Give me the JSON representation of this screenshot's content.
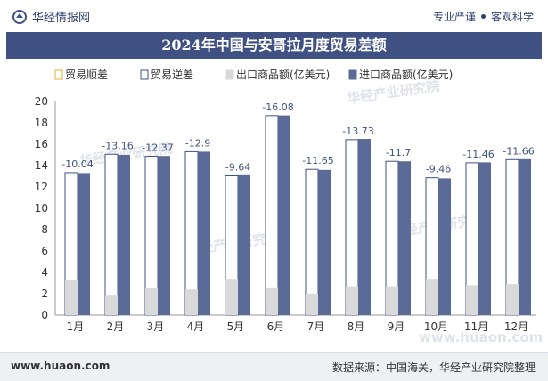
{
  "header": {
    "brand": "华经情报网",
    "tagline_1": "专业严谨",
    "tagline_2": "客观科学"
  },
  "colors": {
    "navy": "#3e5182",
    "import": "#5b6b98",
    "export": "#d9d9d9",
    "bar_edge": "#3e5182"
  },
  "chart_data": {
    "type": "bar",
    "title": "2024年中国与安哥拉月度贸易差额",
    "categories": [
      "1月",
      "2月",
      "3月",
      "4月",
      "5月",
      "6月",
      "7月",
      "8月",
      "9月",
      "10月",
      "11月",
      "12月"
    ],
    "series": [
      {
        "name": "贸易顺差",
        "values": [
          null,
          null,
          null,
          null,
          null,
          null,
          null,
          null,
          null,
          null,
          null,
          null
        ]
      },
      {
        "name": "贸易逆差",
        "values": [
          -10.04,
          -13.16,
          -12.37,
          -12.9,
          -9.64,
          -16.08,
          -11.65,
          -13.73,
          -11.7,
          -9.46,
          -11.46,
          -11.66
        ]
      },
      {
        "name": "出口商品额(亿美元)",
        "values": [
          3.3,
          1.9,
          2.5,
          2.4,
          3.4,
          2.6,
          2.0,
          2.7,
          2.7,
          3.4,
          2.8,
          2.9
        ]
      },
      {
        "name": "进口商品额(亿美元)",
        "values": [
          13.3,
          15.0,
          14.9,
          15.3,
          13.1,
          18.7,
          13.6,
          16.5,
          14.4,
          12.8,
          14.3,
          14.6
        ]
      }
    ],
    "ylim": [
      0,
      20
    ],
    "yticks": [
      0,
      2,
      4,
      6,
      8,
      10,
      12,
      14,
      16,
      18,
      20
    ],
    "data_labels": [
      "-10.04",
      "-13.16",
      "-12.37",
      "-12.9",
      "-9.64",
      "-16.08",
      "-11.65",
      "-13.73",
      "-11.7",
      "-9.46",
      "-11.46",
      "-11.66"
    ],
    "legend_position": "top",
    "grid": false
  },
  "watermarks": [
    "华经产业研究院",
    "www.huaon.com"
  ],
  "footer": {
    "site": "www.huaon.com",
    "source": "数据来源：中国海关，华经产业研究院整理"
  }
}
